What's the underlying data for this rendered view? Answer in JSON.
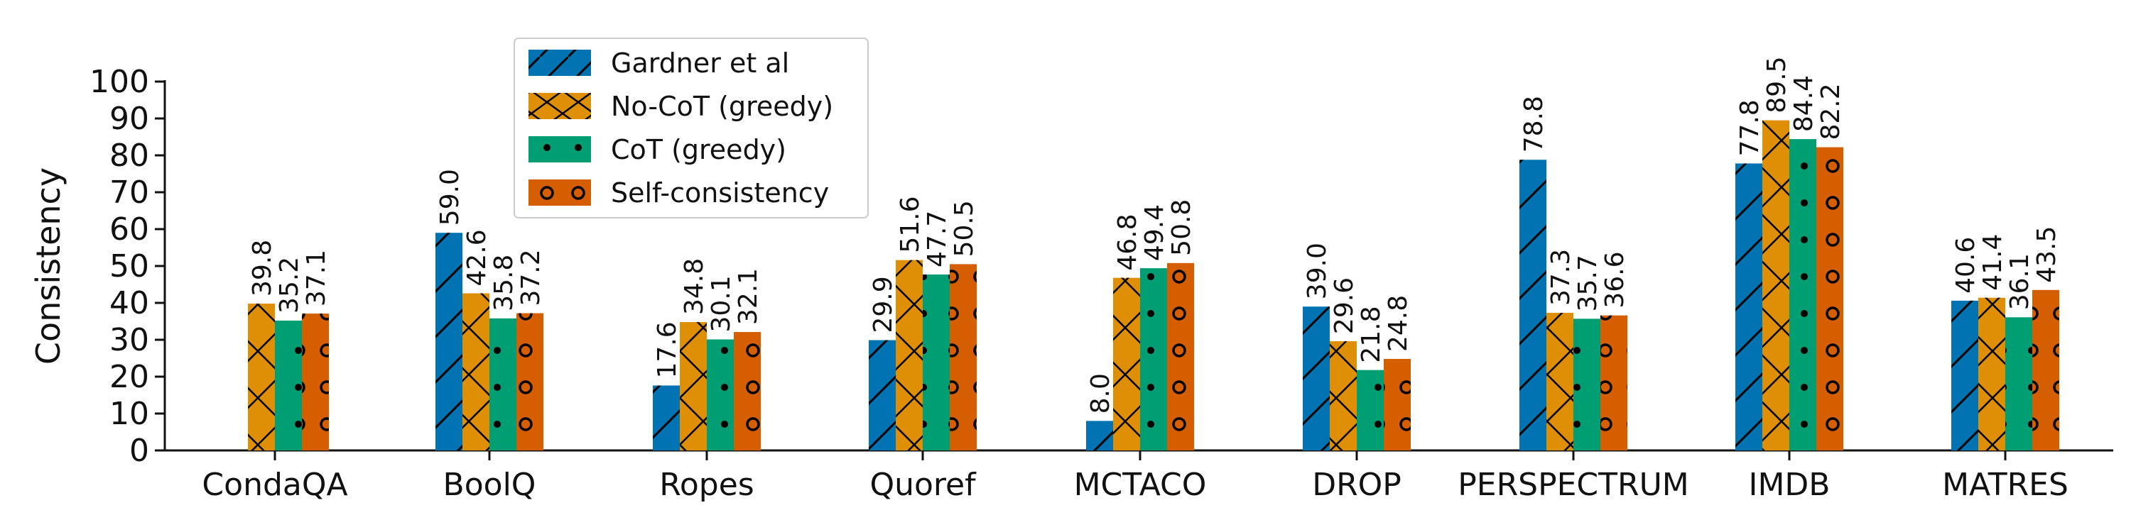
{
  "chart_data": {
    "type": "bar",
    "title": "",
    "xlabel": "",
    "ylabel": "Consistency",
    "ylim": [
      0,
      100
    ],
    "yticks": [
      0,
      10,
      20,
      30,
      40,
      50,
      60,
      70,
      80,
      90,
      100
    ],
    "grid": false,
    "legend_position": "top-left",
    "categories": [
      "CondaQA",
      "BoolQ",
      "Ropes",
      "Quoref",
      "MCTACO",
      "DROP",
      "PERSPECTRUM",
      "IMDB",
      "MATRES"
    ],
    "series": [
      {
        "name": "Gardner et al",
        "color": "#0173b2",
        "hatch": "slash",
        "values": [
          null,
          59.0,
          17.6,
          29.9,
          8.0,
          39.0,
          78.8,
          77.8,
          40.6
        ],
        "labels": [
          null,
          "59.0",
          "17.6",
          "29.9",
          "8.0",
          "39.0",
          "78.8",
          "77.8",
          "40.6"
        ]
      },
      {
        "name": "No-CoT (greedy)",
        "color": "#de8f05",
        "hatch": "cross",
        "values": [
          39.8,
          42.6,
          34.8,
          51.6,
          46.8,
          29.6,
          37.3,
          89.5,
          41.4
        ],
        "labels": [
          "39.8",
          "42.6",
          "34.8",
          "51.6",
          "46.8",
          "29.6",
          "37.3",
          "89.5",
          "41.4"
        ]
      },
      {
        "name": "CoT (greedy)",
        "color": "#029e73",
        "hatch": "dot",
        "values": [
          35.2,
          35.8,
          30.1,
          47.7,
          49.4,
          21.8,
          35.7,
          84.4,
          36.1
        ],
        "labels": [
          "35.2",
          "35.8",
          "30.1",
          "47.7",
          "49.4",
          "21.8",
          "35.7",
          "84.4",
          "36.1"
        ]
      },
      {
        "name": "Self-consistency",
        "color": "#d55e00",
        "hatch": "circle",
        "values": [
          37.1,
          37.2,
          32.1,
          50.5,
          50.8,
          24.8,
          36.6,
          82.2,
          43.5
        ],
        "labels": [
          "37.1",
          "37.2",
          "32.1",
          "50.5",
          "50.8",
          "24.8",
          "36.6",
          "82.2",
          "43.5"
        ]
      }
    ]
  }
}
